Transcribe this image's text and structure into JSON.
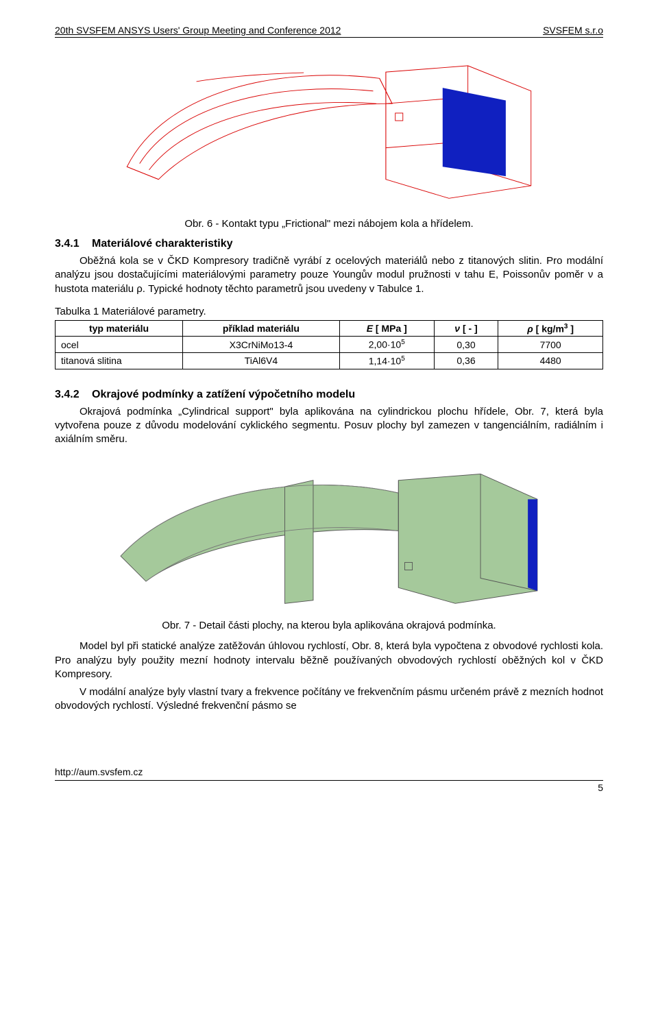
{
  "header": {
    "left": "20th SVSFEM ANSYS Users' Group Meeting and Conference 2012",
    "right": "SVSFEM s.r.o"
  },
  "figure6": {
    "caption": "Obr. 6 - Kontakt typu „Frictional\" mezi nábojem kola a hřídelem.",
    "wire_color": "#d90000",
    "fill_color": "#1020c0",
    "bg_color": "#ffffff",
    "aspect_width": 760,
    "aspect_height": 240
  },
  "section341": {
    "num": "3.4.1",
    "title": "Materiálové charakteristiky",
    "para": "Oběžná kola se v ČKD Kompresory tradičně vyrábí z ocelových materiálů nebo z titanových slitin. Pro modální analýzu jsou dostačujícími materiálovými parametry pouze Youngův modul pružnosti v tahu E, Poissonův poměr ν a hustota materiálu ρ. Typické hodnoty těchto parametrů jsou uvedeny v Tabulce 1."
  },
  "table1": {
    "title": "Tabulka 1 Materiálové parametry.",
    "columns": [
      "typ materiálu",
      "příklad materiálu",
      "E [ MPa ]",
      "ν [ - ]",
      "ρ [ kg/m³ ]"
    ],
    "col_E_sup": "",
    "col_rho_sup": "3",
    "rows": [
      {
        "typ": "ocel",
        "priklad": "X3CrNiMo13-4",
        "E_base": "2,00·10",
        "E_exp": "5",
        "nu": "0,30",
        "rho": "7700"
      },
      {
        "typ": "titanová slitina",
        "priklad": "TiAl6V4",
        "E_base": "1,14·10",
        "E_exp": "5",
        "nu": "0,36",
        "rho": "4480"
      }
    ]
  },
  "section342": {
    "num": "3.4.2",
    "title": "Okrajové podmínky a zatížení výpočetního modelu",
    "para": "Okrajová podmínka „Cylindrical support\" byla aplikována na cylindrickou plochu hřídele, Obr. 7, která byla vytvořena pouze z důvodu modelování cyklického segmentu. Posuv plochy byl zamezen v tangenciálním, radiálním i axiálním směru."
  },
  "figure7": {
    "caption": "Obr. 7 - Detail části plochy, na kterou byla aplikována okrajová podmínka.",
    "body_color": "#a5c99b",
    "edge_color": "#555555",
    "bc_color": "#1020c0",
    "bg_color": "#ffffff",
    "aspect_width": 760,
    "aspect_height": 230
  },
  "bottom_paras": {
    "p1": "Model byl při statické analýze zatěžován úhlovou rychlostí, Obr. 8, která byla vypočtena z obvodové rychlosti kola. Pro analýzu byly použity mezní hodnoty intervalu běžně používaných obvodových rychlostí oběžných kol v ČKD Kompresory.",
    "p2": "V modální analýze byly vlastní tvary a frekvence počítány ve frekvenčním pásmu určeném právě z mezních hodnot obvodových rychlostí. Výsledné frekvenční pásmo se"
  },
  "footer": {
    "url": "http://aum.svsfem.cz",
    "page_num": "5"
  }
}
